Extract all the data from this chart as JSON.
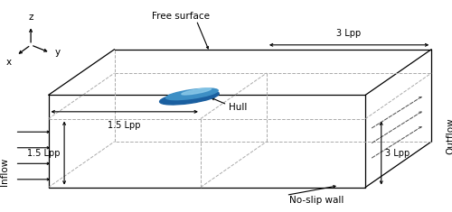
{
  "bg_color": "#ffffff",
  "line_color": "#000000",
  "dashed_color": "#aaaaaa",
  "labels": {
    "free_surface": "Free surface",
    "hull": "Hull",
    "inflow": "Inflow",
    "outflow": "Outflow",
    "no_slip": "No-slip wall",
    "dim_15_h": "1.5 Lpp",
    "dim_15_v": "1.5 Lpp",
    "dim_3_h": "3 Lpp",
    "dim_3_v": "3 Lpp",
    "x_axis": "x",
    "y_axis": "y",
    "z_axis": "z"
  }
}
